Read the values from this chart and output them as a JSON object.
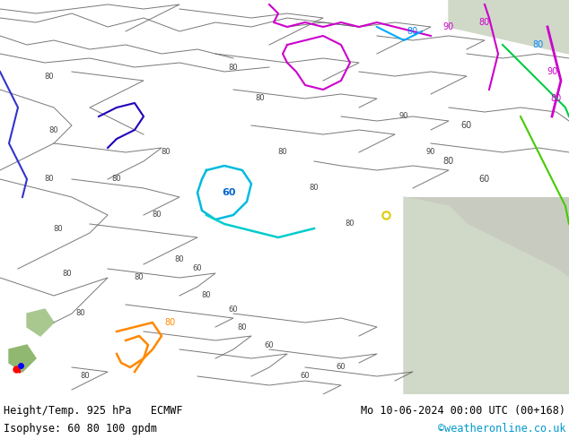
{
  "title_left": "Height/Temp. 925 hPa   ECMWF",
  "title_right": "Mo 10-06-2024 00:00 UTC (00+168)",
  "subtitle_left": "Isophyse: 60 80 100 gpdm",
  "subtitle_right": "©weatheronline.co.uk",
  "subtitle_right_color": "#0099cc",
  "map_bg": "#b8d8a0",
  "sea_color": "#c8e8c8",
  "land_right_color": "#c8d8b8",
  "text_color": "#000000",
  "figsize": [
    6.34,
    4.9
  ],
  "dpi": 100,
  "bottom_bar_color": "#ffffff",
  "gray_line_color": "#606060",
  "blue_line_color": "#4444ff",
  "cyan_line_color": "#00aacc",
  "magenta_line_color": "#cc00cc",
  "orange_line_color": "#ff8800",
  "red_line_color": "#dd0000",
  "green_line_color": "#88cc00",
  "dark_blue_line_color": "#0000cc"
}
